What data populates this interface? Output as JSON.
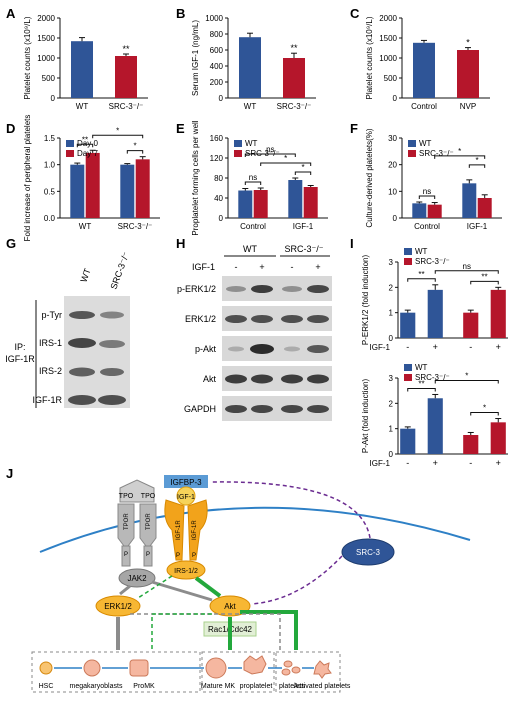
{
  "panel_labels": [
    "A",
    "B",
    "C",
    "D",
    "E",
    "F",
    "G",
    "H",
    "I",
    "J"
  ],
  "colors": {
    "blue": "#2f5597",
    "red": "#b5162b",
    "gray": "#8c8c8c",
    "green": "#23a83c",
    "purple": "#6b2c91",
    "membrane": "#2e80c6",
    "orange": "#f2a31b",
    "igfbp": "#5b9bd5"
  },
  "chart_data": [
    {
      "id": "A",
      "type": "bar",
      "ylabel": "Platelet counts (x10⁹/L)",
      "categories": [
        "WT",
        "SRC-3⁻/⁻"
      ],
      "values": [
        1420,
        1050
      ],
      "errors": [
        90,
        50
      ],
      "ylim": [
        0,
        2000
      ],
      "ticks": [
        0,
        500,
        1000,
        1500,
        2000
      ],
      "sig": [
        "",
        "**"
      ]
    },
    {
      "id": "B",
      "type": "bar",
      "ylabel": "Serum IGF-1 (ng/mL)",
      "categories": [
        "WT",
        "SRC-3⁻/⁻"
      ],
      "values": [
        760,
        500
      ],
      "errors": [
        50,
        60
      ],
      "ylim": [
        0,
        1000
      ],
      "ticks": [
        0,
        200,
        400,
        600,
        800,
        1000
      ],
      "sig": [
        "",
        "**"
      ]
    },
    {
      "id": "C",
      "type": "bar",
      "ylabel": "Platelet counts (x10⁹/L)",
      "categories": [
        "Control",
        "NVP"
      ],
      "values": [
        1380,
        1200
      ],
      "errors": [
        60,
        60
      ],
      "ylim": [
        0,
        2000
      ],
      "ticks": [
        0,
        500,
        1000,
        1500,
        2000
      ],
      "sig": [
        "",
        "*"
      ]
    },
    {
      "id": "D",
      "type": "bar",
      "ylabel": "Fold increase of peripheral platelets",
      "categories": [
        "WT",
        "SRC-3⁻/⁻"
      ],
      "ylim": [
        0,
        1.5
      ],
      "ticks": [
        0.0,
        0.5,
        1.0,
        1.5
      ],
      "legend": [
        "Day 0",
        "Day 7"
      ],
      "series": [
        {
          "name": "Day 0",
          "values": [
            1.0,
            1.0
          ],
          "errors": [
            0.03,
            0.02
          ]
        },
        {
          "name": "Day 7",
          "values": [
            1.22,
            1.1
          ],
          "errors": [
            0.05,
            0.05
          ]
        }
      ],
      "sig_labels": [
        "**",
        "*",
        "*"
      ]
    },
    {
      "id": "E",
      "type": "bar",
      "ylabel": "Proplatelet forming cells per well",
      "categories": [
        "Control",
        "IGF-1"
      ],
      "ylim": [
        0,
        160
      ],
      "ticks": [
        0,
        40,
        80,
        120,
        160
      ],
      "legend": [
        "WT",
        "SRC-3⁻/⁻"
      ],
      "series": [
        {
          "name": "WT",
          "values": [
            55,
            76
          ],
          "errors": [
            4,
            4
          ]
        },
        {
          "name": "SRC-3⁻/⁻",
          "values": [
            56,
            62
          ],
          "errors": [
            4,
            3
          ]
        }
      ],
      "sig_labels": [
        "ns",
        "*",
        "ns",
        "*"
      ]
    },
    {
      "id": "F",
      "type": "bar",
      "ylabel": "Culture-derived platelets(%)",
      "categories": [
        "Control",
        "IGF-1"
      ],
      "ylim": [
        0,
        30
      ],
      "ticks": [
        0,
        10,
        20,
        30
      ],
      "legend": [
        "WT",
        "SRC-3⁻/⁻"
      ],
      "series": [
        {
          "name": "WT",
          "values": [
            5.5,
            13
          ],
          "errors": [
            0.5,
            1.3
          ]
        },
        {
          "name": "SRC-3⁻/⁻",
          "values": [
            5,
            7.5
          ],
          "errors": [
            0.8,
            1.2
          ]
        }
      ],
      "sig_labels": [
        "ns",
        "*",
        "*"
      ]
    },
    {
      "id": "I1",
      "type": "bar",
      "ylabel": "P-ERK1/2 (fold induction)",
      "ylim": [
        0,
        3
      ],
      "ticks": [
        0,
        1,
        2,
        3
      ],
      "legend": [
        "WT",
        "SRC-3⁻/⁻"
      ],
      "x_row_label": "IGF-1",
      "x_signs": [
        "-",
        "+",
        "-",
        "+"
      ],
      "values": [
        1.0,
        1.9,
        1.0,
        1.9
      ],
      "errors": [
        0.1,
        0.2,
        0.1,
        0.1
      ],
      "sig_labels": [
        "**",
        "ns",
        "**"
      ]
    },
    {
      "id": "I2",
      "type": "bar",
      "ylabel": "P-Akt (fold induction)",
      "ylim": [
        0,
        3
      ],
      "ticks": [
        0,
        1,
        2,
        3
      ],
      "legend": [
        "WT",
        "SRC-3⁻/⁻"
      ],
      "x_row_label": "IGF-1",
      "x_signs": [
        "-",
        "+",
        "-",
        "+"
      ],
      "values": [
        1.0,
        2.2,
        0.75,
        1.25
      ],
      "errors": [
        0.07,
        0.15,
        0.1,
        0.15
      ],
      "sig_labels": [
        "**",
        "*",
        "*"
      ]
    }
  ],
  "panel_g": {
    "header": [
      "WT",
      "SRC-3⁻/⁻"
    ],
    "bands": [
      "p-Tyr",
      "IRS-1",
      "IRS-2",
      "IGF-1R"
    ],
    "ip_label": [
      "IP:",
      "IGF-1R"
    ]
  },
  "panel_h": {
    "groups": [
      "WT",
      "SRC-3⁻/⁻"
    ],
    "row_label": "IGF-1",
    "signs": [
      "-",
      "+",
      "-",
      "+"
    ],
    "bands": [
      "p-ERK1/2",
      "ERK1/2",
      "p-Akt",
      "Akt",
      "GAPDH"
    ]
  },
  "panel_j": {
    "igfbp": "IGFBP-3",
    "igf": "IGF-1",
    "tpo_left": "TPO",
    "tpo_right": "TPO",
    "tpor_left": "TPOR",
    "tpor_right": "TPOR",
    "igf1r_left": "IGF-1R",
    "igf1r_right": "IGF-1R",
    "p": "P",
    "jak2": "JAK2",
    "irs": "IRS-1/2",
    "src3": "SRC-3",
    "erk": "ERK1/2",
    "akt": "Akt",
    "rac": "Rac1/Cdc42",
    "stages": [
      "HSC",
      "megakaryoblasts",
      "ProMK",
      "Mature MK",
      "proplatelet",
      "platelets",
      "Activated platelets"
    ]
  }
}
